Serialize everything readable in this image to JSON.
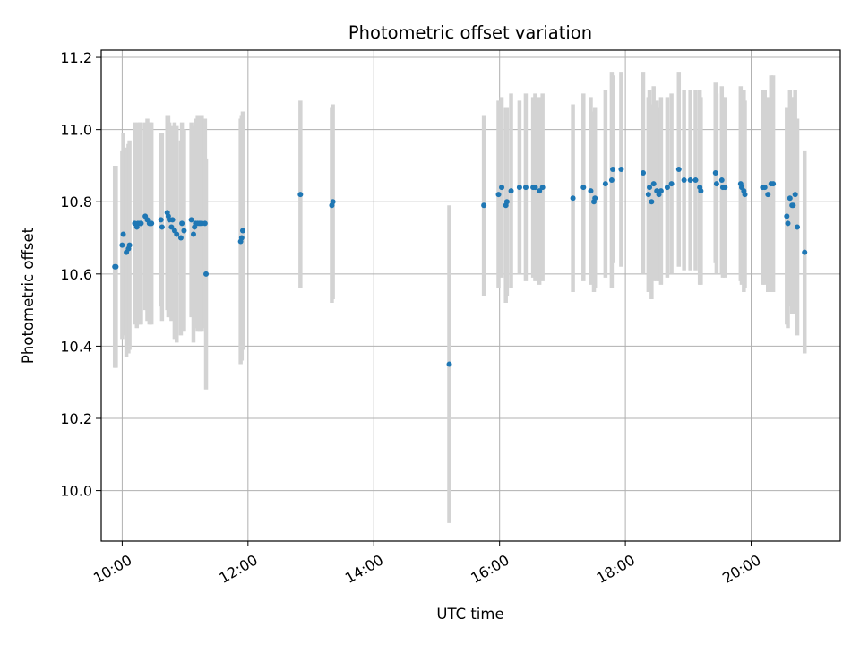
{
  "chart_data": {
    "type": "scatter",
    "title": "Photometric offset variation",
    "xlabel": "UTC time",
    "ylabel": "Photometric offset",
    "x_unit": "hours UTC",
    "xlim": [
      "09:40",
      "21:25"
    ],
    "ylim": [
      9.86,
      11.22
    ],
    "grid": true,
    "x_ticks": [
      "10:00",
      "12:00",
      "14:00",
      "16:00",
      "18:00",
      "20:00"
    ],
    "y_ticks": [
      "10.0",
      "10.2",
      "10.4",
      "10.6",
      "10.8",
      "11.0",
      "11.2"
    ],
    "colors": {
      "point": "#1f77b4",
      "errorbar": "#d3d3d3",
      "grid": "#b0b0b0"
    },
    "series": [
      {
        "x": [
          "09:53",
          "09:54",
          "10:00",
          "10:01",
          "10:04",
          "10:06",
          "10:07",
          "10:12",
          "10:14",
          "10:15",
          "10:17",
          "10:18",
          "10:22",
          "10:24",
          "10:26",
          "10:27",
          "10:28",
          "10:37",
          "10:38",
          "10:43",
          "10:44",
          "10:45",
          "10:47",
          "10:48",
          "10:50",
          "10:52",
          "10:56",
          "10:57",
          "10:59",
          "11:06",
          "11:08",
          "11:09",
          "11:10",
          "11:12",
          "11:14",
          "11:16",
          "11:19",
          "11:20",
          "11:53",
          "11:54",
          "11:55",
          "12:50",
          "13:20",
          "13:21",
          "15:12",
          "15:45",
          "15:59",
          "16:02",
          "16:06",
          "16:07",
          "16:11",
          "16:19",
          "16:25",
          "16:32",
          "16:34",
          "16:38",
          "16:41",
          "17:10",
          "17:20",
          "17:27",
          "17:30",
          "17:31",
          "17:41",
          "17:47",
          "17:48",
          "17:56",
          "18:17",
          "18:22",
          "18:23",
          "18:25",
          "18:27",
          "18:30",
          "18:32",
          "18:34",
          "18:40",
          "18:44",
          "18:51",
          "18:56",
          "19:02",
          "19:07",
          "19:11",
          "19:12",
          "19:26",
          "19:27",
          "19:32",
          "19:33",
          "19:35",
          "19:50",
          "19:51",
          "19:53",
          "19:54",
          "20:11",
          "20:13",
          "20:16",
          "20:19",
          "20:21",
          "20:34",
          "20:35",
          "20:37",
          "20:39",
          "20:40",
          "20:42",
          "20:44",
          "20:51"
        ],
        "y": [
          10.62,
          10.62,
          10.68,
          10.71,
          10.66,
          10.67,
          10.68,
          10.74,
          10.73,
          10.74,
          10.74,
          10.74,
          10.76,
          10.75,
          10.74,
          10.74,
          10.74,
          10.75,
          10.73,
          10.77,
          10.76,
          10.75,
          10.73,
          10.75,
          10.72,
          10.71,
          10.7,
          10.74,
          10.72,
          10.75,
          10.71,
          10.73,
          10.74,
          10.74,
          10.74,
          10.74,
          10.74,
          10.6,
          10.69,
          10.7,
          10.72,
          10.82,
          10.79,
          10.8,
          10.35,
          10.79,
          10.82,
          10.84,
          10.79,
          10.8,
          10.83,
          10.84,
          10.84,
          10.84,
          10.84,
          10.83,
          10.84,
          10.81,
          10.84,
          10.83,
          10.8,
          10.81,
          10.85,
          10.86,
          10.89,
          10.89,
          10.88,
          10.82,
          10.84,
          10.8,
          10.85,
          10.83,
          10.82,
          10.83,
          10.84,
          10.85,
          10.89,
          10.86,
          10.86,
          10.86,
          10.84,
          10.83,
          10.88,
          10.85,
          10.86,
          10.84,
          10.84,
          10.85,
          10.84,
          10.83,
          10.82,
          10.84,
          10.84,
          10.82,
          10.85,
          10.85,
          10.76,
          10.74,
          10.81,
          10.79,
          10.79,
          10.82,
          10.73,
          10.66
        ],
        "err": [
          0.28,
          0.28,
          0.26,
          0.28,
          0.29,
          0.29,
          0.29,
          0.28,
          0.28,
          0.28,
          0.28,
          0.28,
          0.26,
          0.28,
          0.28,
          0.28,
          0.28,
          0.24,
          0.26,
          0.27,
          0.28,
          0.27,
          0.26,
          0.26,
          0.3,
          0.3,
          0.27,
          0.28,
          0.28,
          0.27,
          0.3,
          0.28,
          0.29,
          0.3,
          0.3,
          0.3,
          0.29,
          0.32,
          0.34,
          0.34,
          0.33,
          0.26,
          0.27,
          0.27,
          0.44,
          0.25,
          0.26,
          0.25,
          0.27,
          0.26,
          0.27,
          0.24,
          0.26,
          0.25,
          0.26,
          0.26,
          0.26,
          0.26,
          0.26,
          0.26,
          0.25,
          0.25,
          0.26,
          0.3,
          0.26,
          0.27,
          0.28,
          0.27,
          0.27,
          0.27,
          0.27,
          0.25,
          0.24,
          0.26,
          0.25,
          0.25,
          0.27,
          0.25,
          0.25,
          0.25,
          0.27,
          0.26,
          0.25,
          0.25,
          0.26,
          0.25,
          0.25,
          0.27,
          0.27,
          0.28,
          0.26,
          0.27,
          0.27,
          0.27,
          0.3,
          0.3,
          0.3,
          0.29,
          0.3,
          0.3,
          0.3,
          0.29,
          0.3,
          0.28
        ]
      }
    ]
  }
}
